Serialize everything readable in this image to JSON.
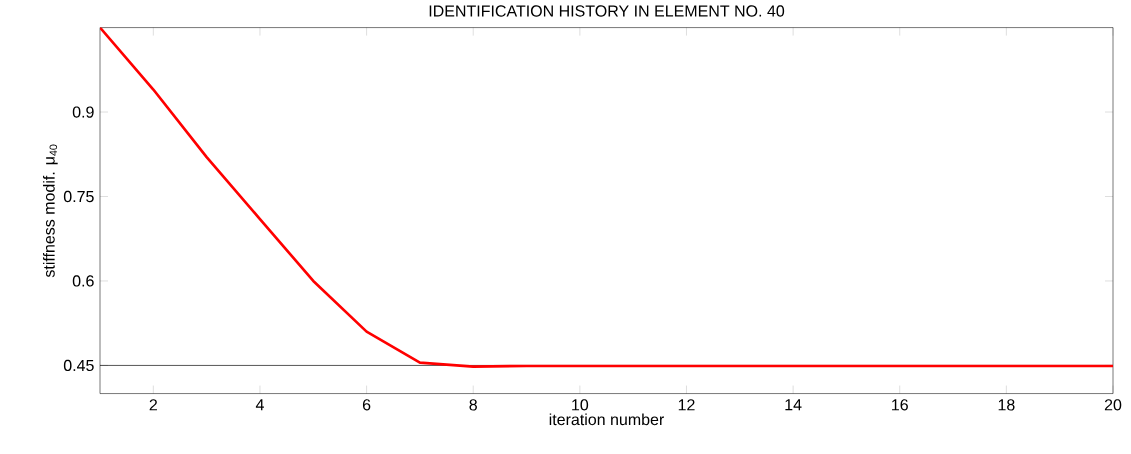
{
  "chart_data": {
    "type": "line",
    "title": "IDENTIFICATION HISTORY IN ELEMENT NO. 40",
    "xlabel": "iteration number",
    "ylabel": "stiffness modif. μ$_{40}$",
    "x": [
      1,
      2,
      3,
      4,
      5,
      6,
      7,
      8,
      9,
      10,
      11,
      12,
      13,
      14,
      15,
      16,
      17,
      18,
      19,
      20
    ],
    "series": [
      {
        "color": "#ff0000",
        "values": [
          1.05,
          0.94,
          0.82,
          0.71,
          0.6,
          0.51,
          0.455,
          0.448,
          0.449,
          0.449,
          0.449,
          0.449,
          0.449,
          0.449,
          0.449,
          0.449,
          0.449,
          0.449,
          0.449,
          0.449
        ]
      }
    ],
    "xlim": [
      1,
      20
    ],
    "ylim": [
      0.4,
      1.05
    ],
    "xticks": [
      2,
      4,
      6,
      8,
      10,
      12,
      14,
      16,
      18,
      20
    ],
    "yticks": [
      0.45,
      0.6,
      0.75,
      0.9
    ],
    "ref_lines": [
      {
        "axis": "y",
        "value": 0.45,
        "color": "#000000"
      }
    ],
    "grid": false,
    "marker": "none",
    "line_style": "solid"
  }
}
